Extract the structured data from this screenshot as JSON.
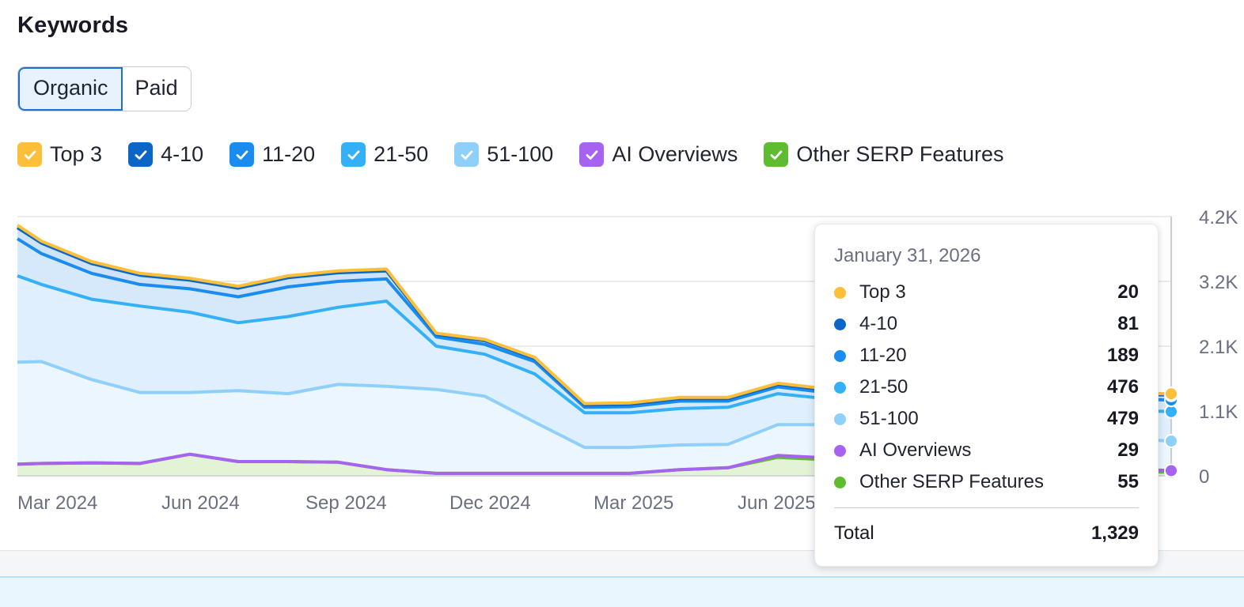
{
  "section_title": "Keywords",
  "toggle": {
    "organic": "Organic",
    "paid": "Paid",
    "active": "organic"
  },
  "legend": [
    {
      "label": "Top 3",
      "color": "#fcbf3a",
      "checked": true
    },
    {
      "label": "4-10",
      "color": "#0b66c8",
      "checked": true
    },
    {
      "label": "11-20",
      "color": "#1a8cf0",
      "checked": true
    },
    {
      "label": "21-50",
      "color": "#33b0f7",
      "checked": true
    },
    {
      "label": "51-100",
      "color": "#8fd0fb",
      "checked": true
    },
    {
      "label": "AI Overviews",
      "color": "#a563f0",
      "checked": true
    },
    {
      "label": "Other SERP Features",
      "color": "#5fbb2f",
      "checked": true
    }
  ],
  "chart_data": {
    "type": "area",
    "stacked": true,
    "x_ticks": [
      "Mar 2024",
      "Jun 2024",
      "Sep 2024",
      "Dec 2024",
      "Mar 2025",
      "Jun 2025"
    ],
    "y_ticks": [
      "4.2K",
      "3.2K",
      "2.1K",
      "1.1K",
      "0"
    ],
    "ylim": [
      0,
      4200
    ],
    "grid": true,
    "x": [
      "2024-02-15",
      "2024-03-01",
      "2024-04-01",
      "2024-05-01",
      "2024-06-01",
      "2024-07-01",
      "2024-08-01",
      "2024-09-01",
      "2024-10-01",
      "2024-11-01",
      "2024-12-01",
      "2025-01-01",
      "2025-02-01",
      "2025-03-01",
      "2025-04-01",
      "2025-05-01",
      "2025-06-01",
      "2025-07-01",
      "2026-01-31"
    ],
    "series": [
      {
        "name": "Other SERP Features",
        "color": "#5fbb2f",
        "values": [
          190,
          200,
          210,
          200,
          350,
          230,
          230,
          220,
          100,
          40,
          40,
          40,
          40,
          40,
          100,
          130,
          300,
          260,
          55
        ]
      },
      {
        "name": "AI Overviews",
        "color": "#a563f0",
        "values": [
          0,
          0,
          0,
          0,
          0,
          0,
          0,
          0,
          0,
          0,
          0,
          0,
          0,
          0,
          0,
          0,
          30,
          30,
          29
        ]
      },
      {
        "name": "51-100",
        "color": "#8fd0fb",
        "values": [
          1650,
          1650,
          1350,
          1150,
          1000,
          1150,
          1100,
          1260,
          1350,
          1360,
          1250,
          830,
          420,
          420,
          400,
          380,
          500,
          540,
          479
        ]
      },
      {
        "name": "21-50",
        "color": "#33b0f7",
        "values": [
          1400,
          1250,
          1300,
          1400,
          1300,
          1100,
          1250,
          1250,
          1380,
          700,
          680,
          780,
          560,
          560,
          590,
          600,
          500,
          420,
          476
        ]
      },
      {
        "name": "11-20",
        "color": "#1a8cf0",
        "values": [
          600,
          500,
          420,
          350,
          380,
          420,
          480,
          420,
          360,
          150,
          160,
          200,
          90,
          100,
          120,
          100,
          110,
          100,
          189
        ]
      },
      {
        "name": "4-10",
        "color": "#0b66c8",
        "values": [
          180,
          170,
          160,
          150,
          140,
          140,
          150,
          140,
          130,
          40,
          60,
          50,
          40,
          40,
          40,
          40,
          40,
          40,
          81
        ]
      },
      {
        "name": "Top 3",
        "color": "#fcbf3a",
        "values": [
          40,
          30,
          30,
          30,
          30,
          30,
          30,
          30,
          30,
          20,
          20,
          20,
          20,
          20,
          20,
          20,
          20,
          20,
          20
        ]
      }
    ],
    "tooltip": {
      "date": "January 31, 2026",
      "rows": [
        {
          "label": "Top 3",
          "value": "20",
          "color": "#fcbf3a"
        },
        {
          "label": "4-10",
          "value": "81",
          "color": "#0b66c8"
        },
        {
          "label": "11-20",
          "value": "189",
          "color": "#1a8cf0"
        },
        {
          "label": "21-50",
          "value": "476",
          "color": "#33b0f7"
        },
        {
          "label": "51-100",
          "value": "479",
          "color": "#8fd0fb"
        },
        {
          "label": "AI Overviews",
          "value": "29",
          "color": "#a563f0"
        },
        {
          "label": "Other SERP Features",
          "value": "55",
          "color": "#5fbb2f"
        }
      ],
      "total_label": "Total",
      "total_value": "1,329"
    }
  }
}
